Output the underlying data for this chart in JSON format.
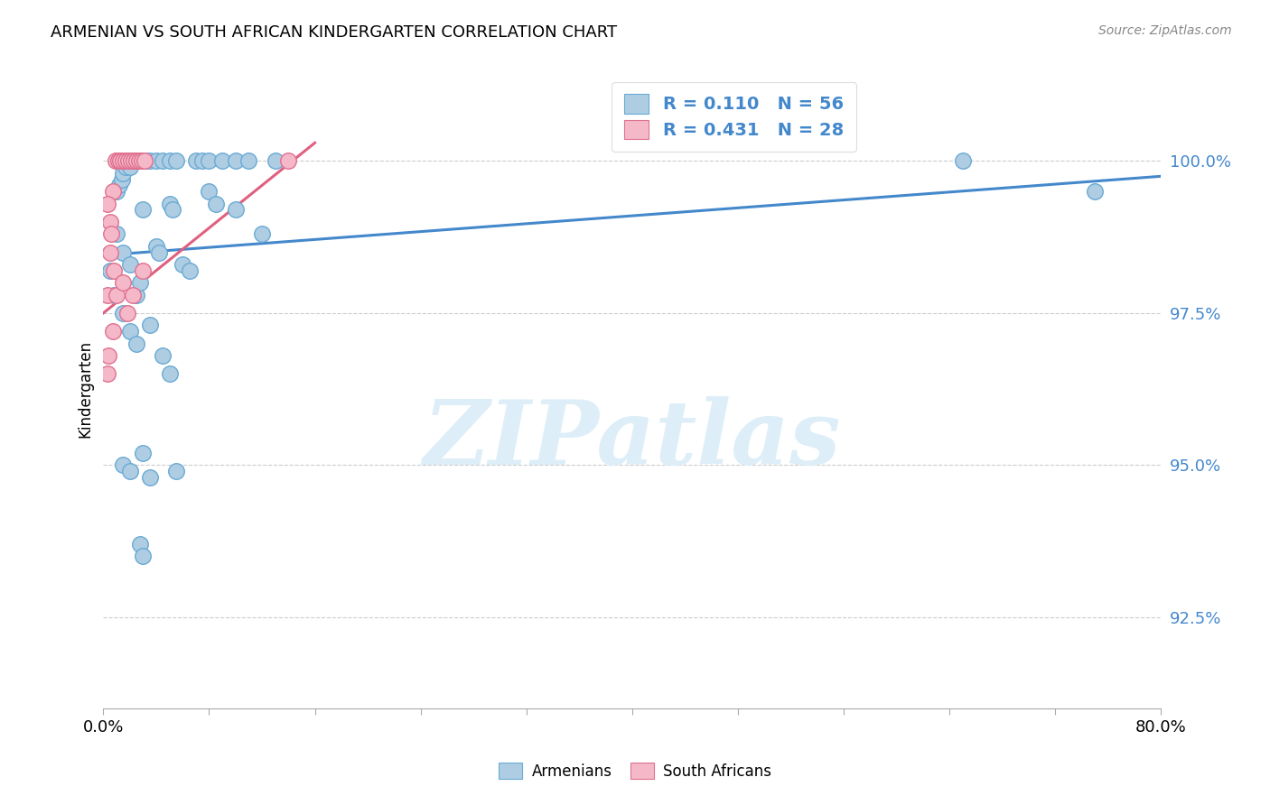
{
  "title": "ARMENIAN VS SOUTH AFRICAN KINDERGARTEN CORRELATION CHART",
  "source": "Source: ZipAtlas.com",
  "ylabel": "Kindergarten",
  "ytick_values": [
    92.5,
    95.0,
    97.5,
    100.0
  ],
  "xlim": [
    0.0,
    80.0
  ],
  "ylim": [
    91.0,
    101.5
  ],
  "legend_label1": "Armenians",
  "legend_label2": "South Africans",
  "blue_color": "#aecde3",
  "blue_edge": "#6aaad4",
  "pink_color": "#f4b8c8",
  "pink_edge": "#e07090",
  "line_blue": "#4488cc",
  "line_pink": "#e06080",
  "ytick_color": "#4488cc",
  "watermark": "ZIPatlas",
  "watermark_color": "#ddeef8",
  "blue_dots": [
    [
      0.5,
      98.2
    ],
    [
      0.8,
      97.8
    ],
    [
      1.0,
      99.5
    ],
    [
      1.2,
      99.6
    ],
    [
      1.4,
      99.7
    ],
    [
      1.5,
      99.8
    ],
    [
      1.7,
      99.9
    ],
    [
      2.0,
      99.9
    ],
    [
      2.3,
      100.0
    ],
    [
      2.5,
      100.0
    ],
    [
      2.8,
      100.0
    ],
    [
      3.0,
      100.0
    ],
    [
      3.2,
      100.0
    ],
    [
      3.5,
      100.0
    ],
    [
      4.0,
      100.0
    ],
    [
      4.5,
      100.0
    ],
    [
      5.0,
      100.0
    ],
    [
      5.5,
      100.0
    ],
    [
      7.0,
      100.0
    ],
    [
      7.5,
      100.0
    ],
    [
      8.0,
      100.0
    ],
    [
      9.0,
      100.0
    ],
    [
      10.0,
      100.0
    ],
    [
      11.0,
      100.0
    ],
    [
      13.0,
      100.0
    ],
    [
      1.0,
      98.8
    ],
    [
      1.5,
      98.5
    ],
    [
      2.0,
      98.3
    ],
    [
      2.5,
      97.8
    ],
    [
      2.8,
      98.0
    ],
    [
      3.0,
      99.2
    ],
    [
      4.0,
      98.6
    ],
    [
      4.2,
      98.5
    ],
    [
      5.0,
      99.3
    ],
    [
      5.2,
      99.2
    ],
    [
      6.0,
      98.3
    ],
    [
      6.5,
      98.2
    ],
    [
      8.0,
      99.5
    ],
    [
      8.5,
      99.3
    ],
    [
      10.0,
      99.2
    ],
    [
      12.0,
      98.8
    ],
    [
      1.5,
      97.5
    ],
    [
      2.0,
      97.2
    ],
    [
      2.5,
      97.0
    ],
    [
      3.5,
      97.3
    ],
    [
      4.5,
      96.8
    ],
    [
      5.0,
      96.5
    ],
    [
      3.0,
      95.2
    ],
    [
      3.5,
      94.8
    ],
    [
      5.5,
      94.9
    ],
    [
      1.5,
      95.0
    ],
    [
      2.0,
      94.9
    ],
    [
      2.8,
      93.7
    ],
    [
      3.0,
      93.5
    ],
    [
      65.0,
      100.0
    ],
    [
      75.0,
      99.5
    ]
  ],
  "pink_dots": [
    [
      0.3,
      97.8
    ],
    [
      0.5,
      99.0
    ],
    [
      0.7,
      99.5
    ],
    [
      0.9,
      100.0
    ],
    [
      1.1,
      100.0
    ],
    [
      1.3,
      100.0
    ],
    [
      1.5,
      100.0
    ],
    [
      1.7,
      100.0
    ],
    [
      1.9,
      100.0
    ],
    [
      2.1,
      100.0
    ],
    [
      2.3,
      100.0
    ],
    [
      2.5,
      100.0
    ],
    [
      2.7,
      100.0
    ],
    [
      2.9,
      100.0
    ],
    [
      3.1,
      100.0
    ],
    [
      0.5,
      98.5
    ],
    [
      0.8,
      98.2
    ],
    [
      1.0,
      97.8
    ],
    [
      1.5,
      98.0
    ],
    [
      1.8,
      97.5
    ],
    [
      2.2,
      97.8
    ],
    [
      3.0,
      98.2
    ],
    [
      0.4,
      96.8
    ],
    [
      0.7,
      97.2
    ],
    [
      0.3,
      99.3
    ],
    [
      0.6,
      98.8
    ],
    [
      14.0,
      100.0
    ],
    [
      0.3,
      96.5
    ]
  ],
  "blue_line_x": [
    0.0,
    80.0
  ],
  "blue_line_y": [
    98.45,
    99.75
  ],
  "pink_line_x": [
    0.0,
    16.0
  ],
  "pink_line_y": [
    97.5,
    100.3
  ],
  "xtick_positions": [
    0,
    8,
    16,
    24,
    32,
    40,
    48,
    56,
    64,
    72,
    80
  ]
}
